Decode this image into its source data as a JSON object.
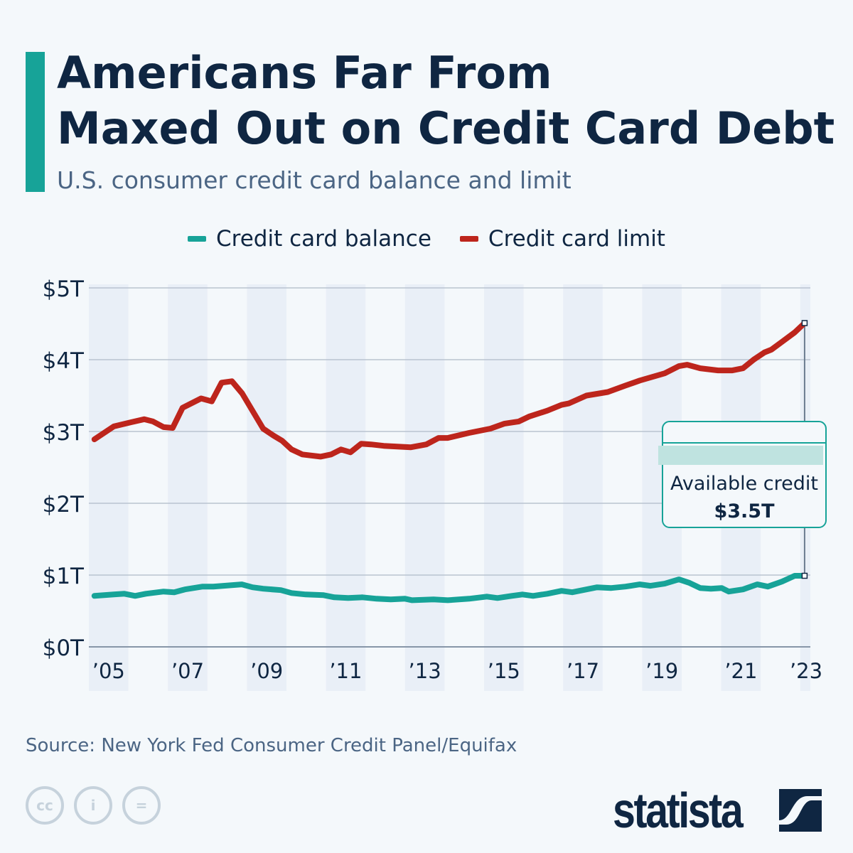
{
  "header": {
    "title_line1": "Americans Far From",
    "title_line2": "Maxed Out on Credit Card Debt",
    "subtitle": "U.S. consumer credit card balance and limit"
  },
  "colors": {
    "accent": "#17a398",
    "balance": "#17a398",
    "limit": "#bd251c",
    "text": "#0f2642"
  },
  "chart_data": {
    "type": "line",
    "title": "",
    "xlabel": "",
    "ylabel": "",
    "xlim": [
      2005,
      2023.25
    ],
    "ylim": [
      0,
      5
    ],
    "y_ticks": [
      "$0T",
      "$1T",
      "$2T",
      "$3T",
      "$4T",
      "$5T"
    ],
    "x_ticks": [
      "’05",
      "’07",
      "’09",
      "’11",
      "’13",
      "’15",
      "’17",
      "’19",
      "’21",
      "’23"
    ],
    "grid": true,
    "legend": "top",
    "series": [
      {
        "name": "Credit card balance",
        "color": "#17a398",
        "x": [
          2005.14,
          2005.63,
          2005.9,
          2006.17,
          2006.44,
          2006.89,
          2007.16,
          2007.43,
          2007.88,
          2008.15,
          2008.87,
          2009.14,
          2009.41,
          2009.86,
          2010.13,
          2010.49,
          2010.94,
          2011.21,
          2011.56,
          2011.92,
          2012.28,
          2012.64,
          2013.0,
          2013.18,
          2013.72,
          2014.08,
          2014.62,
          2015.07,
          2015.34,
          2015.7,
          2015.97,
          2016.24,
          2016.6,
          2016.96,
          2017.23,
          2017.5,
          2017.86,
          2018.22,
          2018.58,
          2018.94,
          2019.21,
          2019.57,
          2019.93,
          2020.2,
          2020.47,
          2020.74,
          2021.01,
          2021.19,
          2021.55,
          2021.91,
          2022.18,
          2022.54,
          2022.86,
          2023.11
        ],
        "y": [
          0.71,
          0.73,
          0.74,
          0.71,
          0.74,
          0.77,
          0.76,
          0.8,
          0.84,
          0.84,
          0.87,
          0.83,
          0.81,
          0.79,
          0.75,
          0.73,
          0.72,
          0.69,
          0.68,
          0.69,
          0.67,
          0.66,
          0.67,
          0.65,
          0.66,
          0.65,
          0.67,
          0.7,
          0.68,
          0.71,
          0.73,
          0.71,
          0.74,
          0.78,
          0.76,
          0.79,
          0.83,
          0.82,
          0.84,
          0.87,
          0.85,
          0.88,
          0.94,
          0.89,
          0.82,
          0.81,
          0.82,
          0.77,
          0.8,
          0.87,
          0.84,
          0.91,
          0.99,
          0.99
        ]
      },
      {
        "name": "Credit card limit",
        "color": "#bd251c",
        "x": [
          2005.14,
          2005.63,
          2006.08,
          2006.4,
          2006.62,
          2006.89,
          2007.12,
          2007.37,
          2007.84,
          2008.11,
          2008.36,
          2008.62,
          2008.88,
          2009.41,
          2009.68,
          2009.89,
          2010.13,
          2010.4,
          2010.86,
          2011.13,
          2011.38,
          2011.62,
          2011.89,
          2012.14,
          2012.46,
          2013.15,
          2013.54,
          2013.85,
          2014.08,
          2014.62,
          2015.16,
          2015.52,
          2015.88,
          2016.15,
          2016.6,
          2016.96,
          2017.14,
          2017.59,
          2018.13,
          2018.58,
          2018.94,
          2019.57,
          2019.93,
          2020.14,
          2020.47,
          2020.92,
          2021.28,
          2021.55,
          2021.82,
          2022.09,
          2022.27,
          2022.54,
          2022.86,
          2023.11
        ],
        "y": [
          2.89,
          3.07,
          3.13,
          3.17,
          3.14,
          3.06,
          3.05,
          3.33,
          3.46,
          3.42,
          3.68,
          3.7,
          3.53,
          3.04,
          2.94,
          2.87,
          2.75,
          2.68,
          2.65,
          2.68,
          2.75,
          2.71,
          2.83,
          2.82,
          2.8,
          2.78,
          2.82,
          2.91,
          2.91,
          2.98,
          3.04,
          3.11,
          3.14,
          3.21,
          3.29,
          3.37,
          3.39,
          3.5,
          3.55,
          3.64,
          3.71,
          3.81,
          3.91,
          3.93,
          3.88,
          3.85,
          3.85,
          3.88,
          4.0,
          4.1,
          4.14,
          4.25,
          4.38,
          4.51
        ]
      }
    ],
    "annotation": {
      "label": "Available credit",
      "value": "$3.5T"
    }
  },
  "footer": {
    "source": "Source: New York Fed Consumer Credit Panel/Equifax",
    "logo": "statista",
    "cc_icons": [
      "cc",
      "by",
      "nd"
    ]
  }
}
